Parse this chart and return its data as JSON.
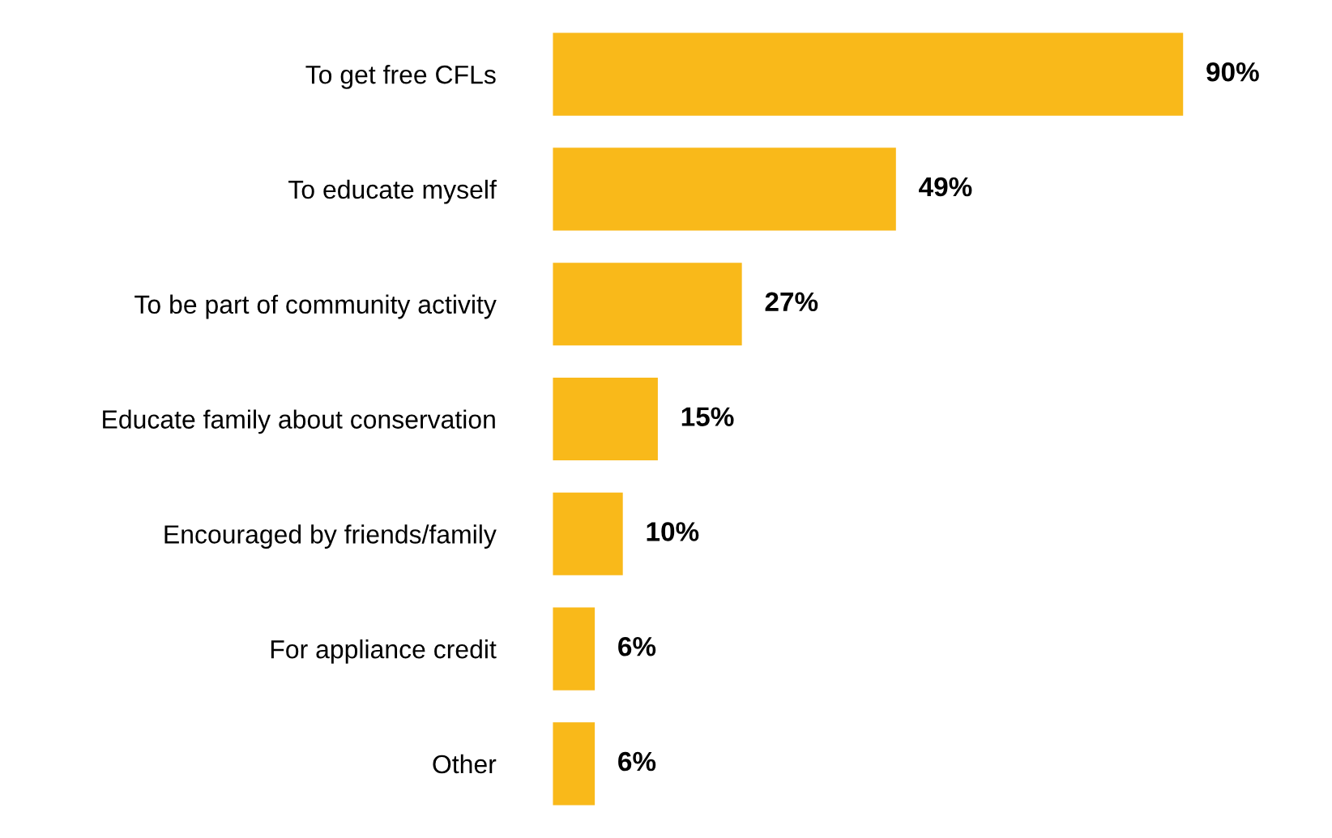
{
  "chart_data": {
    "type": "bar",
    "orientation": "horizontal",
    "categories": [
      "To get free CFLs",
      "To educate myself",
      "To be part of community activity",
      "Educate family about conservation",
      "Encouraged by friends/family",
      "For appliance credit",
      "Other"
    ],
    "values": [
      90,
      49,
      27,
      15,
      10,
      6,
      6
    ],
    "color": "#f9b91a",
    "value_labels": [
      "90%",
      "49%",
      "27%",
      "15%",
      "10%",
      "6%",
      "6%"
    ],
    "tick_labels": "y",
    "grid": false
  }
}
